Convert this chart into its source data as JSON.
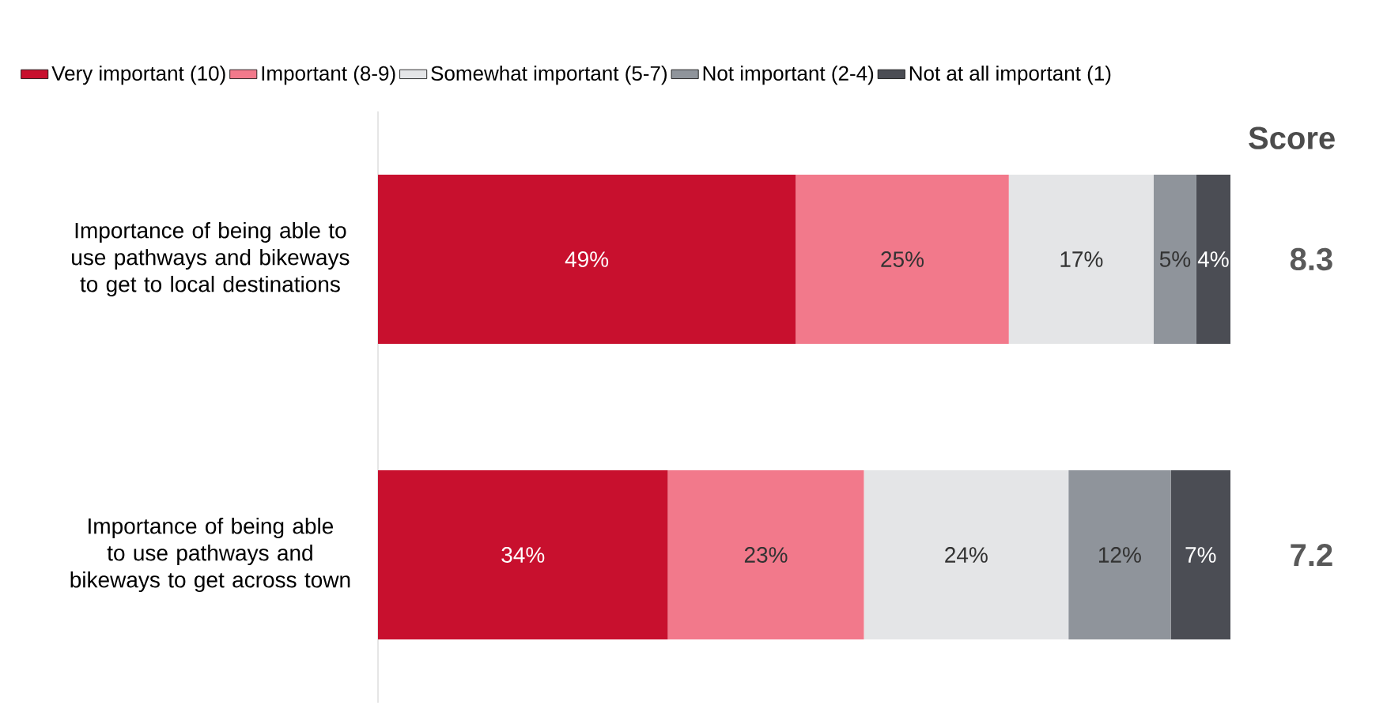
{
  "chart_data": {
    "type": "bar",
    "orientation": "horizontal",
    "stacked": true,
    "categories": [
      "Importance of being able to use pathways and bikeways to get to local destinations",
      "Importance of being able to use pathways and bikeways to get across town"
    ],
    "series": [
      {
        "name": "Very important (10)",
        "color": "#c8102e",
        "values": [
          49,
          34
        ],
        "value_labels": [
          "49%",
          "34%"
        ]
      },
      {
        "name": "Important (8-9)",
        "color": "#f2798b",
        "values": [
          25,
          23
        ],
        "value_labels": [
          "25%",
          "23%"
        ]
      },
      {
        "name": "Somewhat important (5-7)",
        "color": "#e4e5e7",
        "values": [
          17,
          24
        ],
        "value_labels": [
          "17%",
          "24%"
        ]
      },
      {
        "name": "Not important (2-4)",
        "color": "#8f949b",
        "values": [
          5,
          12
        ],
        "value_labels": [
          "5%",
          "12%"
        ]
      },
      {
        "name": "Not at all important (1)",
        "color": "#4b4d54",
        "values": [
          4,
          7
        ],
        "value_labels": [
          "4%",
          "7%"
        ]
      }
    ],
    "tick_labels": "y",
    "legend": "top",
    "grid": false,
    "annotations": [
      "Score",
      "8.3",
      "7.2"
    ]
  }
}
